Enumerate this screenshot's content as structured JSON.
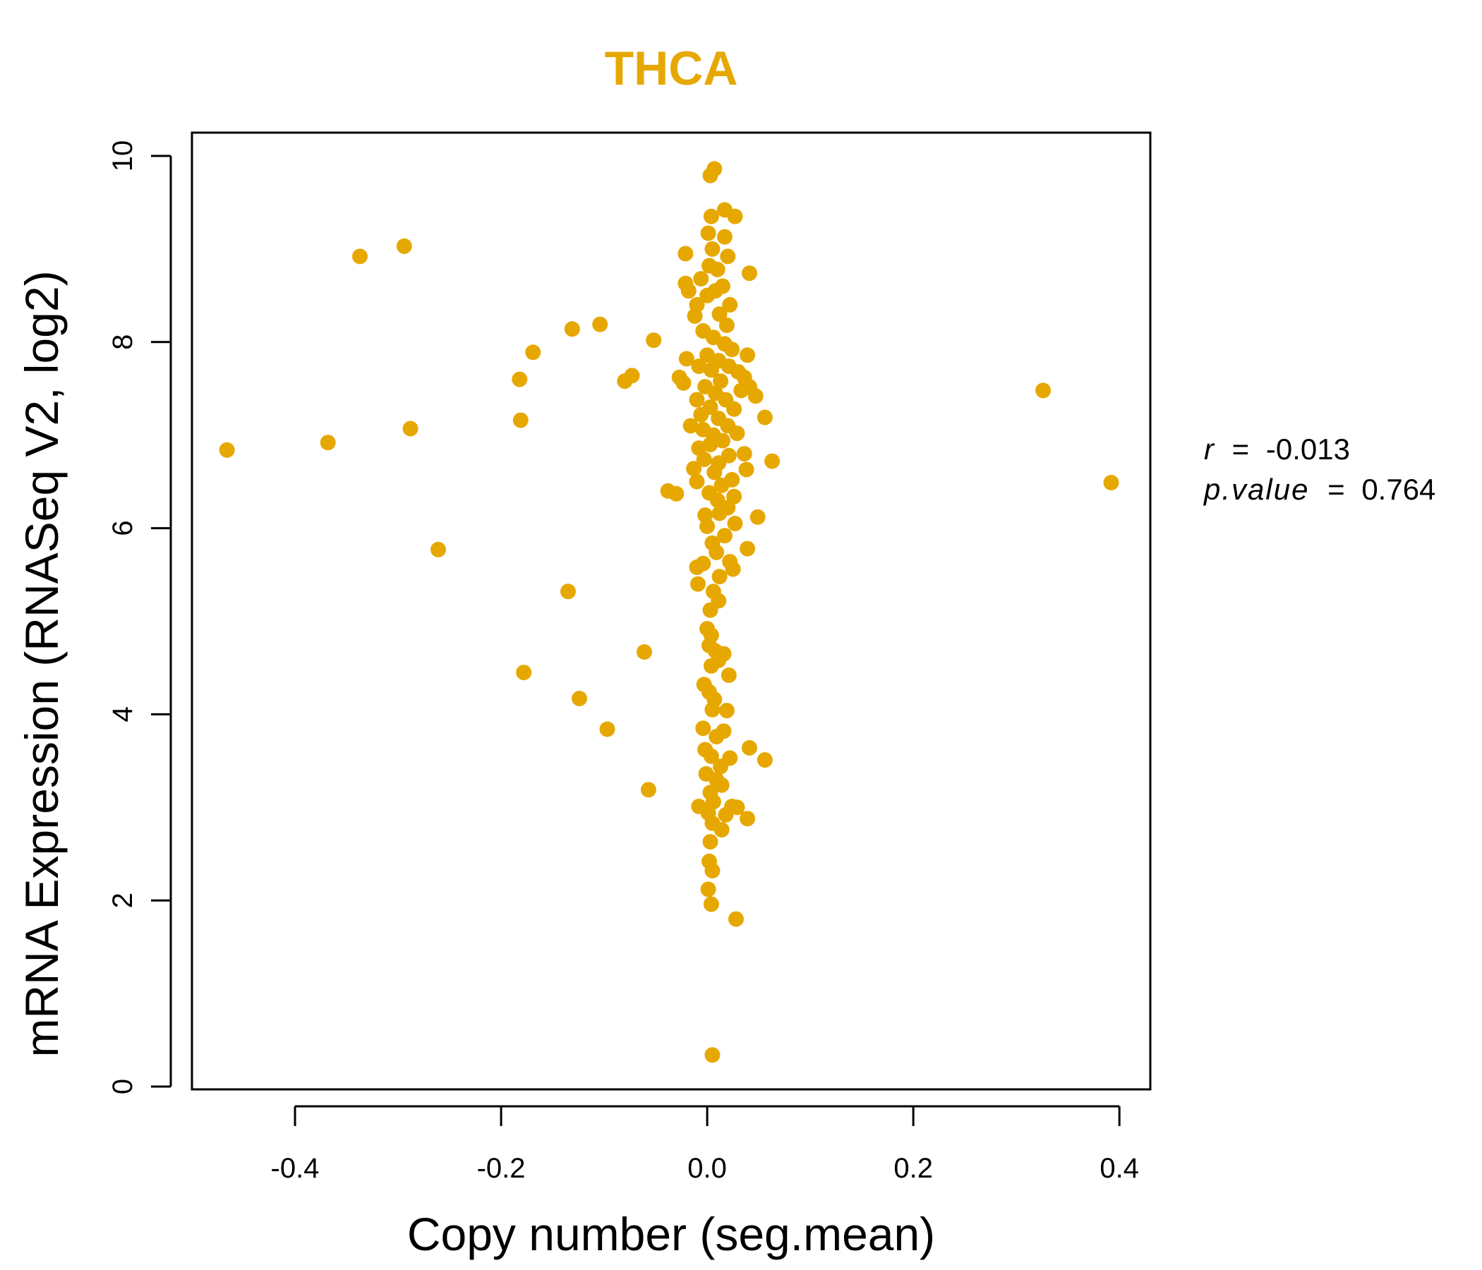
{
  "colors": {
    "points": "#E6A800",
    "title": "#E6A800",
    "axis": "#000000"
  },
  "chart_data": {
    "type": "scatter",
    "title": "THCA",
    "xlabel": "Copy number (seg.mean)",
    "ylabel": "mRNA Expression (RNASeq V2, log2)",
    "xlim": [
      -0.5,
      0.43
    ],
    "ylim": [
      -0.03,
      10.25
    ],
    "xticks": [
      -0.4,
      -0.2,
      0.0,
      0.2,
      0.4
    ],
    "xtick_labels": [
      "-0.4",
      "-0.2",
      "0.0",
      "0.2",
      "0.4"
    ],
    "yticks": [
      0,
      2,
      4,
      6,
      8,
      10
    ],
    "ytick_labels": [
      "0",
      "2",
      "4",
      "6",
      "8",
      "10"
    ],
    "stats": {
      "r_label": "r",
      "r_value": "-0.013",
      "p_label": "p.value",
      "p_value": "0.764"
    },
    "points": [
      [
        -0.466,
        6.84
      ],
      [
        -0.368,
        6.92
      ],
      [
        -0.337,
        8.92
      ],
      [
        -0.294,
        9.03
      ],
      [
        -0.288,
        7.07
      ],
      [
        -0.261,
        5.77
      ],
      [
        -0.182,
        7.6
      ],
      [
        -0.181,
        7.16
      ],
      [
        -0.178,
        4.45
      ],
      [
        -0.169,
        7.89
      ],
      [
        -0.135,
        5.32
      ],
      [
        -0.131,
        8.14
      ],
      [
        -0.124,
        4.17
      ],
      [
        -0.104,
        8.19
      ],
      [
        -0.097,
        3.84
      ],
      [
        -0.08,
        7.58
      ],
      [
        -0.073,
        7.64
      ],
      [
        -0.052,
        8.02
      ],
      [
        -0.061,
        4.67
      ],
      [
        -0.057,
        3.19
      ],
      [
        -0.038,
        6.4
      ],
      [
        -0.03,
        6.37
      ],
      [
        -0.027,
        7.62
      ],
      [
        -0.023,
        7.56
      ],
      [
        -0.021,
        8.63
      ],
      [
        -0.018,
        8.55
      ],
      [
        -0.02,
        7.82
      ],
      [
        -0.016,
        7.1
      ],
      [
        -0.021,
        8.95
      ],
      [
        0.007,
        9.86
      ],
      [
        0.003,
        9.79
      ],
      [
        0.004,
        9.35
      ],
      [
        0.017,
        9.42
      ],
      [
        0.027,
        9.35
      ],
      [
        0.001,
        9.17
      ],
      [
        0.017,
        9.13
      ],
      [
        0.005,
        9.0
      ],
      [
        0.02,
        8.92
      ],
      [
        0.041,
        8.74
      ],
      [
        -0.006,
        8.68
      ],
      [
        0.002,
        8.82
      ],
      [
        0.01,
        8.78
      ],
      [
        -0.01,
        8.4
      ],
      [
        0.0,
        8.5
      ],
      [
        0.008,
        8.55
      ],
      [
        0.015,
        8.6
      ],
      [
        0.022,
        8.4
      ],
      [
        -0.012,
        8.28
      ],
      [
        0.012,
        8.3
      ],
      [
        0.019,
        8.18
      ],
      [
        -0.004,
        8.12
      ],
      [
        0.006,
        8.05
      ],
      [
        0.017,
        7.98
      ],
      [
        0.024,
        7.92
      ],
      [
        0.0,
        7.86
      ],
      [
        0.011,
        7.8
      ],
      [
        0.039,
        7.86
      ],
      [
        -0.008,
        7.74
      ],
      [
        0.004,
        7.7
      ],
      [
        0.021,
        7.74
      ],
      [
        0.03,
        7.68
      ],
      [
        0.036,
        7.62
      ],
      [
        0.041,
        7.52
      ],
      [
        0.047,
        7.42
      ],
      [
        0.033,
        7.48
      ],
      [
        0.013,
        7.58
      ],
      [
        -0.002,
        7.52
      ],
      [
        0.008,
        7.45
      ],
      [
        -0.01,
        7.38
      ],
      [
        0.018,
        7.38
      ],
      [
        0.026,
        7.28
      ],
      [
        0.003,
        7.3
      ],
      [
        -0.006,
        7.22
      ],
      [
        0.056,
        7.19
      ],
      [
        0.011,
        7.18
      ],
      [
        0.02,
        7.1
      ],
      [
        -0.004,
        7.06
      ],
      [
        0.006,
        7.0
      ],
      [
        0.029,
        7.02
      ],
      [
        0.015,
        6.94
      ],
      [
        -0.008,
        6.86
      ],
      [
        0.003,
        6.9
      ],
      [
        0.036,
        6.8
      ],
      [
        0.063,
        6.72
      ],
      [
        0.021,
        6.78
      ],
      [
        0.011,
        6.7
      ],
      [
        -0.003,
        6.74
      ],
      [
        -0.013,
        6.64
      ],
      [
        0.007,
        6.6
      ],
      [
        0.038,
        6.63
      ],
      [
        0.024,
        6.52
      ],
      [
        -0.01,
        6.5
      ],
      [
        0.014,
        6.46
      ],
      [
        0.002,
        6.38
      ],
      [
        0.026,
        6.34
      ],
      [
        0.01,
        6.3
      ],
      [
        0.02,
        6.22
      ],
      [
        -0.002,
        6.14
      ],
      [
        0.012,
        6.16
      ],
      [
        0.049,
        6.12
      ],
      [
        0.027,
        6.05
      ],
      [
        0.0,
        6.02
      ],
      [
        0.017,
        5.92
      ],
      [
        0.005,
        5.84
      ],
      [
        0.039,
        5.78
      ],
      [
        0.009,
        5.74
      ],
      [
        -0.004,
        5.62
      ],
      [
        0.022,
        5.64
      ],
      [
        -0.01,
        5.58
      ],
      [
        0.025,
        5.56
      ],
      [
        0.012,
        5.48
      ],
      [
        -0.009,
        5.4
      ],
      [
        0.006,
        5.32
      ],
      [
        0.011,
        5.22
      ],
      [
        0.003,
        5.12
      ],
      [
        0.0,
        4.92
      ],
      [
        0.004,
        4.85
      ],
      [
        0.002,
        4.74
      ],
      [
        0.008,
        4.68
      ],
      [
        0.016,
        4.65
      ],
      [
        0.011,
        4.58
      ],
      [
        0.004,
        4.52
      ],
      [
        0.021,
        4.42
      ],
      [
        -0.003,
        4.32
      ],
      [
        0.002,
        4.24
      ],
      [
        0.007,
        4.16
      ],
      [
        0.005,
        4.05
      ],
      [
        0.019,
        4.04
      ],
      [
        -0.004,
        3.85
      ],
      [
        0.016,
        3.82
      ],
      [
        0.009,
        3.76
      ],
      [
        0.041,
        3.64
      ],
      [
        -0.002,
        3.62
      ],
      [
        0.004,
        3.55
      ],
      [
        0.056,
        3.51
      ],
      [
        0.022,
        3.53
      ],
      [
        0.013,
        3.44
      ],
      [
        -0.001,
        3.36
      ],
      [
        0.009,
        3.3
      ],
      [
        0.014,
        3.24
      ],
      [
        0.003,
        3.16
      ],
      [
        0.006,
        3.06
      ],
      [
        0.024,
        3.01
      ],
      [
        0.029,
        3.0
      ],
      [
        -0.008,
        3.01
      ],
      [
        0.001,
        2.94
      ],
      [
        0.039,
        2.88
      ],
      [
        0.018,
        2.92
      ],
      [
        0.005,
        2.83
      ],
      [
        0.014,
        2.76
      ],
      [
        0.003,
        2.63
      ],
      [
        0.002,
        2.42
      ],
      [
        0.005,
        2.32
      ],
      [
        0.001,
        2.12
      ],
      [
        0.004,
        1.96
      ],
      [
        0.028,
        1.8
      ],
      [
        0.326,
        7.48
      ],
      [
        0.392,
        6.49
      ],
      [
        0.005,
        0.34
      ]
    ]
  }
}
